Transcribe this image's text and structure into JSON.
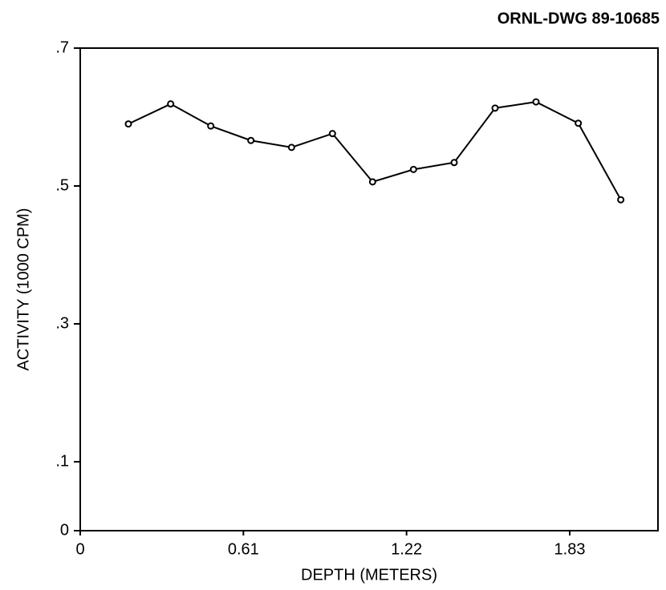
{
  "chart_data": {
    "type": "line",
    "annotation": "ORNL-DWG 89-10685",
    "x_label": "DEPTH (METERS)",
    "y_label": "ACTIVITY (1000 CPM)",
    "x": [
      0.18,
      0.338,
      0.488,
      0.638,
      0.79,
      0.943,
      1.093,
      1.246,
      1.398,
      1.551,
      1.704,
      1.862,
      2.021
    ],
    "values": [
      0.59,
      0.619,
      0.587,
      0.566,
      0.556,
      0.576,
      0.506,
      0.524,
      0.534,
      0.613,
      0.622,
      0.591,
      0.48
    ],
    "color": "#000000",
    "xlim": [
      0,
      2.16
    ],
    "xticks": [
      0,
      0.61,
      1.22,
      1.83
    ],
    "ylim": [
      0,
      0.7
    ],
    "yticks": [
      0,
      {
        "value": 0.1,
        "label": ".1"
      },
      {
        "value": 0.3,
        "label": ".3"
      },
      {
        "value": 0.5,
        "label": ".5"
      },
      {
        "value": 0.7,
        "label": ".7"
      }
    ],
    "grid": false
  }
}
